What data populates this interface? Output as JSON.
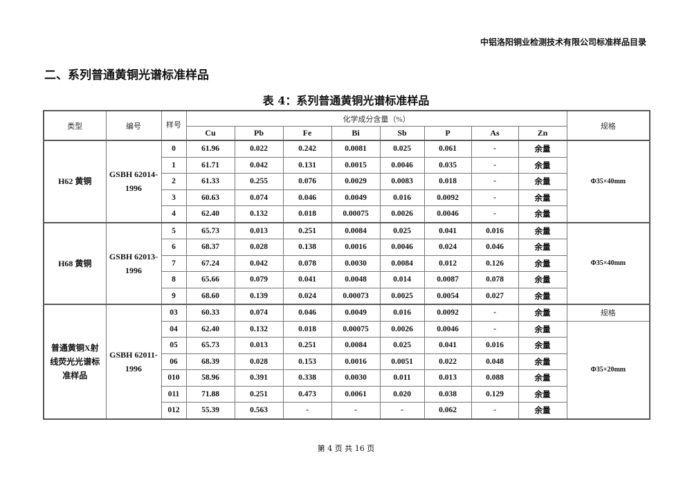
{
  "header": "中铝洛阳铜业检测技术有限公司标准样品目录",
  "section_title": "二、系列普通黄铜光谱标准样品",
  "table_caption": "表 4：系列普通黄铜光谱标准样品",
  "table": {
    "col_type": "类型",
    "col_code": "编号",
    "col_sample": "样号",
    "col_chem": "化学成分含量（%）",
    "col_spec": "规格",
    "elements": [
      "Cu",
      "Pb",
      "Fe",
      "Bi",
      "Sb",
      "P",
      "As",
      "Zn"
    ],
    "groups": [
      {
        "type": "H62 黄铜",
        "code": "GSBH 62014-1996",
        "spec": "Φ35×40mm",
        "rows": [
          {
            "no": "0",
            "v": [
              "61.96",
              "0.022",
              "0.242",
              "0.0081",
              "0.025",
              "0.061",
              "-",
              "余量"
            ]
          },
          {
            "no": "1",
            "v": [
              "61.71",
              "0.042",
              "0.131",
              "0.0015",
              "0.0046",
              "0.035",
              "-",
              "余量"
            ]
          },
          {
            "no": "2",
            "v": [
              "61.33",
              "0.255",
              "0.076",
              "0.0029",
              "0.0083",
              "0.018",
              "-",
              "余量"
            ]
          },
          {
            "no": "3",
            "v": [
              "60.63",
              "0.074",
              "0.046",
              "0.0049",
              "0.016",
              "0.0092",
              "-",
              "余量"
            ]
          },
          {
            "no": "4",
            "v": [
              "62.40",
              "0.132",
              "0.018",
              "0.00075",
              "0.0026",
              "0.0046",
              "-",
              "余量"
            ]
          }
        ]
      },
      {
        "type": "H68 黄铜",
        "code": "GSBH 62013-1996",
        "spec": "Φ35×40mm",
        "rows": [
          {
            "no": "5",
            "v": [
              "65.73",
              "0.013",
              "0.251",
              "0.0084",
              "0.025",
              "0.041",
              "0.016",
              "余量"
            ]
          },
          {
            "no": "6",
            "v": [
              "68.37",
              "0.028",
              "0.138",
              "0.0016",
              "0.0046",
              "0.024",
              "0.046",
              "余量"
            ]
          },
          {
            "no": "7",
            "v": [
              "67.24",
              "0.042",
              "0.078",
              "0.0030",
              "0.0084",
              "0.012",
              "0.126",
              "余量"
            ]
          },
          {
            "no": "8",
            "v": [
              "65.66",
              "0.079",
              "0.041",
              "0.0048",
              "0.014",
              "0.0087",
              "0.078",
              "余量"
            ]
          },
          {
            "no": "9",
            "v": [
              "68.60",
              "0.139",
              "0.024",
              "0.00073",
              "0.0025",
              "0.0054",
              "0.027",
              "余量"
            ]
          }
        ]
      },
      {
        "type": "普通黄铜X射线荧光光谱标准样品",
        "code": "GSBH 62011-1996",
        "spec_first_row": "规格",
        "spec": "Φ35×20mm",
        "rows": [
          {
            "no": "03",
            "v": [
              "60.33",
              "0.074",
              "0.046",
              "0.0049",
              "0.016",
              "0.0092",
              "-",
              "余量"
            ]
          },
          {
            "no": "04",
            "v": [
              "62.40",
              "0.132",
              "0.018",
              "0.00075",
              "0.0026",
              "0.0046",
              "-",
              "余量"
            ]
          },
          {
            "no": "05",
            "v": [
              "65.73",
              "0.013",
              "0.251",
              "0.0084",
              "0.025",
              "0.041",
              "0.016",
              "余量"
            ]
          },
          {
            "no": "06",
            "v": [
              "68.39",
              "0.028",
              "0.153",
              "0.0016",
              "0.0051",
              "0.022",
              "0.048",
              "余量"
            ]
          },
          {
            "no": "010",
            "v": [
              "58.96",
              "0.391",
              "0.338",
              "0.0030",
              "0.011",
              "0.013",
              "0.088",
              "余量"
            ]
          },
          {
            "no": "011",
            "v": [
              "71.88",
              "0.251",
              "0.473",
              "0.0061",
              "0.020",
              "0.038",
              "0.129",
              "余量"
            ]
          },
          {
            "no": "012",
            "v": [
              "55.39",
              "0.563",
              "-",
              "-",
              "-",
              "0.062",
              "-",
              "余量"
            ]
          }
        ]
      }
    ]
  },
  "footer": "第 4 页 共 16 页"
}
